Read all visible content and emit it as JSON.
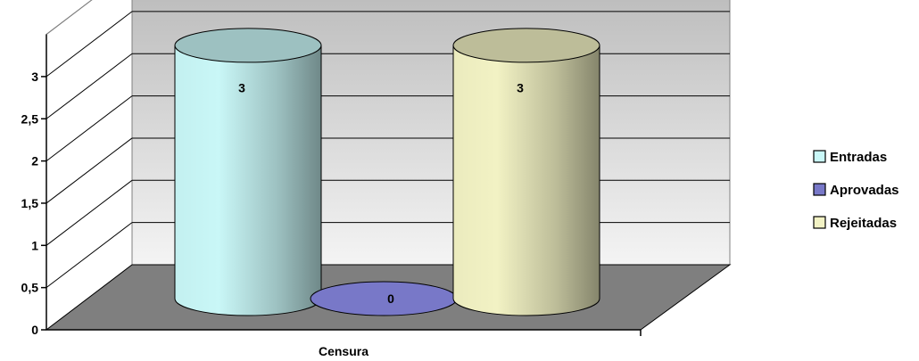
{
  "chart_data": {
    "type": "bar",
    "style": "3d-cylinder",
    "categories": [
      "Censura"
    ],
    "series": [
      {
        "name": "Entradas",
        "values": [
          3
        ],
        "color": "#c9f7f7"
      },
      {
        "name": "Aprovadas",
        "values": [
          0
        ],
        "color": "#7878c8"
      },
      {
        "name": "Rejeitadas",
        "values": [
          3
        ],
        "color": "#f2f2c4"
      }
    ],
    "data_labels": [
      "3",
      "0",
      "3"
    ],
    "xlabel": "Censura",
    "ylabel": "",
    "ylim": [
      0,
      3.5
    ],
    "y_ticks": [
      {
        "value": 0,
        "label": "0"
      },
      {
        "value": 0.5,
        "label": "0,5"
      },
      {
        "value": 1,
        "label": "1"
      },
      {
        "value": 1.5,
        "label": "1,5"
      },
      {
        "value": 2,
        "label": "2"
      },
      {
        "value": 2.5,
        "label": "2,5"
      },
      {
        "value": 3,
        "label": "3"
      }
    ],
    "grid": true,
    "legend_position": "right",
    "colors": {
      "back_wall_top": "#b8b8b8",
      "back_wall_bottom": "#f4f4f4",
      "floor": "#7f7f7f",
      "gridline": "#000000"
    }
  }
}
